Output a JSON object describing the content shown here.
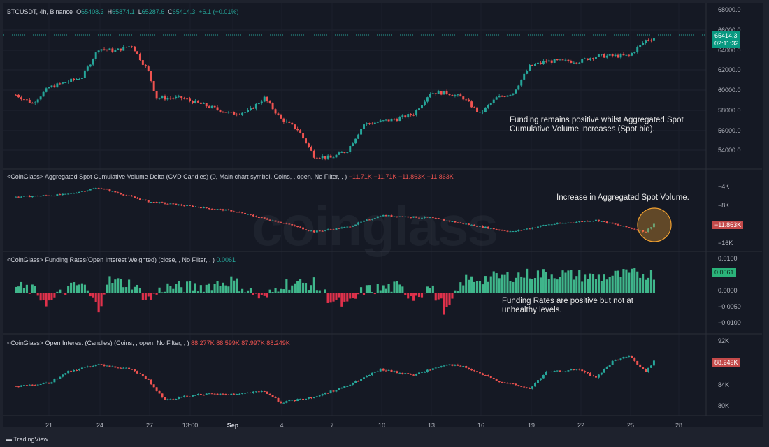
{
  "header": {
    "symbol": "BTCUSDT, 4h, Binance",
    "open_label": "O",
    "open": "65408.3",
    "high_label": "H",
    "high": "65874.1",
    "low_label": "L",
    "low": "65287.6",
    "close_label": "C",
    "close": "65414.3",
    "change": "+6.1 (+0.01%)"
  },
  "price_axis": {
    "ticks": [
      "68000.0",
      "66000.0",
      "64000.0",
      "62000.0",
      "60000.0",
      "58000.0",
      "56000.0",
      "54000.0"
    ],
    "last_price": "65414.3",
    "countdown": "02:11:32"
  },
  "cvd": {
    "title": "<CoinGlass> Aggregated Spot Cumulative Volume Delta (CVD Candles) (0, Main chart symbol, Coins, , open, No Filter, , )",
    "values": [
      "−11.71K",
      "−11.71K",
      "−11.863K",
      "−11.863K"
    ],
    "ticks": [
      "−4K",
      "−8K",
      "−16K"
    ],
    "last": "−11.863K"
  },
  "funding": {
    "title": "<CoinGlass> Funding Rates(Open Interest Weighted) (close, , No Filter, , )",
    "value": "0.0061",
    "ticks": [
      "0.0100",
      "0.0000",
      "−0.0050",
      "−0.0100"
    ],
    "last": "0.0061"
  },
  "oi": {
    "title": "<CoinGlass> Open Interest (Candles) (Coins, , open, No Filter, , )",
    "values": [
      "88.277K",
      "88.599K",
      "87.997K",
      "88.249K"
    ],
    "ticks": [
      "92K",
      "84K",
      "80K"
    ],
    "last": "88.249K"
  },
  "annotations": {
    "main": "Funding remains positive whilst Aggregated Spot Cumulative Volume increases (Spot bid).",
    "cvd": "Increase in Aggregated Spot Volume.",
    "funding": "Funding Rates are positive but not at unhealthy levels."
  },
  "time_axis": [
    "21",
    "24",
    "27",
    "13:00",
    "Sep",
    "4",
    "7",
    "10",
    "13",
    "16",
    "19",
    "22",
    "25",
    "28"
  ],
  "watermark": "coinglass",
  "footer": {
    "brand": "TradingView"
  },
  "colors": {
    "up": "#26a69a",
    "down": "#ef5350",
    "funding_up": "#3fb68b",
    "funding_down": "#e0314b",
    "highlight": "#f0a030"
  },
  "chart_data": [
    {
      "type": "candlestick",
      "pane": "price",
      "ylim": [
        53000,
        68500
      ],
      "path": [
        [
          "08-19",
          59800
        ],
        [
          "08-20",
          59000
        ],
        [
          "08-21",
          60500
        ],
        [
          "08-22",
          61000
        ],
        [
          "08-23",
          61500
        ],
        [
          "08-24",
          64200
        ],
        [
          "08-25",
          64000
        ],
        [
          "08-26",
          64500
        ],
        [
          "08-27",
          62000
        ],
        [
          "08-27.5",
          59500
        ],
        [
          "08-29",
          59500
        ],
        [
          "08-30",
          59000
        ],
        [
          "09-01",
          58000
        ],
        [
          "09-02",
          58200
        ],
        [
          "09-03",
          59500
        ],
        [
          "09-04",
          57500
        ],
        [
          "09-05",
          56500
        ],
        [
          "09-06",
          54000
        ],
        [
          "09-07",
          53800
        ],
        [
          "09-08",
          54500
        ],
        [
          "09-09",
          57000
        ],
        [
          "09-11",
          57500
        ],
        [
          "09-12",
          58000
        ],
        [
          "09-13",
          60000
        ],
        [
          "09-14",
          60000
        ],
        [
          "09-15",
          59500
        ],
        [
          "09-16",
          58000
        ],
        [
          "09-17",
          59500
        ],
        [
          "09-18",
          60000
        ],
        [
          "09-19",
          62500
        ],
        [
          "09-20",
          63000
        ],
        [
          "09-22",
          63000
        ],
        [
          "09-23",
          63500
        ],
        [
          "09-25",
          63500
        ],
        [
          "09-26",
          65000
        ],
        [
          "09-27",
          65414
        ]
      ]
    },
    {
      "type": "candlestick",
      "pane": "cvd",
      "ylim": [
        -17000,
        -3000
      ],
      "path": [
        [
          "08-19",
          -6000
        ],
        [
          "08-22",
          -5500
        ],
        [
          "08-24",
          -4000
        ],
        [
          "08-27",
          -7000
        ],
        [
          "09-01",
          -9000
        ],
        [
          "09-04",
          -11500
        ],
        [
          "09-06",
          -13500
        ],
        [
          "09-08",
          -12500
        ],
        [
          "09-10",
          -10000
        ],
        [
          "09-13",
          -10500
        ],
        [
          "09-17",
          -13000
        ],
        [
          "09-18",
          -13500
        ],
        [
          "09-20",
          -12000
        ],
        [
          "09-23",
          -11000
        ],
        [
          "09-26",
          -13500
        ],
        [
          "09-26.5",
          -11800
        ],
        [
          "09-27",
          -11863
        ]
      ]
    },
    {
      "type": "bar",
      "pane": "funding",
      "ylim": [
        -0.012,
        0.012
      ],
      "path": [
        [
          "08-19",
          0.002
        ],
        [
          "08-20",
          0.001
        ],
        [
          "08-21",
          -0.003
        ],
        [
          "08-22",
          0.001
        ],
        [
          "08-23",
          0.003
        ],
        [
          "08-24",
          -0.005
        ],
        [
          "08-24.5",
          0.004
        ],
        [
          "08-26",
          0.003
        ],
        [
          "08-27",
          -0.002
        ],
        [
          "08-28",
          0.002
        ],
        [
          "08-30",
          0.002
        ],
        [
          "09-01",
          0.004
        ],
        [
          "09-02",
          0.001
        ],
        [
          "09-03",
          -0.002
        ],
        [
          "09-04",
          0.003
        ],
        [
          "09-06",
          0.003
        ],
        [
          "09-07",
          -0.002
        ],
        [
          "09-08",
          -0.004
        ],
        [
          "09-09",
          0.001
        ],
        [
          "09-11",
          0.002
        ],
        [
          "09-12",
          -0.001
        ],
        [
          "09-13",
          0.002
        ],
        [
          "09-14",
          -0.006
        ],
        [
          "09-15",
          0.004
        ],
        [
          "09-17",
          0.005
        ],
        [
          "09-19",
          0.006
        ],
        [
          "09-21",
          0.006
        ],
        [
          "09-23",
          0.005
        ],
        [
          "09-25",
          0.006
        ],
        [
          "09-27",
          0.0061
        ]
      ]
    },
    {
      "type": "candlestick",
      "pane": "oi",
      "ylim": [
        79000,
        93000
      ],
      "path": [
        [
          "08-19",
          84000
        ],
        [
          "08-21",
          84500
        ],
        [
          "08-22",
          86500
        ],
        [
          "08-24",
          88000
        ],
        [
          "08-26",
          87000
        ],
        [
          "08-27",
          85000
        ],
        [
          "08-28",
          81500
        ],
        [
          "08-30",
          82500
        ],
        [
          "09-01",
          82500
        ],
        [
          "09-03",
          83000
        ],
        [
          "09-04",
          81000
        ],
        [
          "09-06",
          82000
        ],
        [
          "09-08",
          84000
        ],
        [
          "09-10",
          87000
        ],
        [
          "09-12",
          86000
        ],
        [
          "09-14",
          88000
        ],
        [
          "09-15",
          87500
        ],
        [
          "09-17",
          85000
        ],
        [
          "09-19",
          83500
        ],
        [
          "09-20",
          86500
        ],
        [
          "09-22",
          87000
        ],
        [
          "09-23",
          85500
        ],
        [
          "09-24",
          88500
        ],
        [
          "09-25",
          89500
        ],
        [
          "09-26",
          86500
        ],
        [
          "09-26.5",
          88500
        ],
        [
          "09-27",
          88249
        ]
      ]
    }
  ]
}
